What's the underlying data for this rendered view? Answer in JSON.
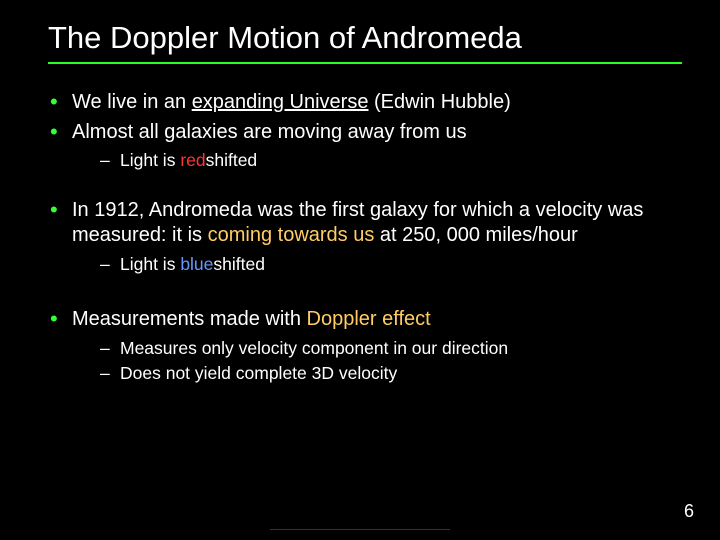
{
  "colors": {
    "background": "#000000",
    "text": "#ffffff",
    "accent_green": "#33ff33",
    "underline_green": "#22ff22",
    "red": "#ff3333",
    "blue": "#6699ff",
    "orange": "#ffcc66"
  },
  "title": "The Doppler Motion of Andromeda",
  "bullets": {
    "b1_pre": "We live in an ",
    "b1_u": "expanding Universe",
    "b1_post": " (Edwin Hubble)",
    "b2": "Almost all galaxies are moving away from us",
    "b2_sub_pre": "Light is ",
    "b2_sub_red": "red",
    "b2_sub_post": "shifted",
    "b3_pre": "In 1912, Andromeda was the first galaxy for which a velocity was measured: it is ",
    "b3_orange": "coming towards us",
    "b3_post": " at 250, 000 miles/hour",
    "b3_sub_pre": "Light is ",
    "b3_sub_blue": "blue",
    "b3_sub_post": "shifted",
    "b4_pre": "Measurements made with ",
    "b4_orange": "Doppler effect",
    "b4_sub1": "Measures only velocity component in our direction",
    "b4_sub2": "Does not yield complete 3D velocity"
  },
  "page_number": "6"
}
